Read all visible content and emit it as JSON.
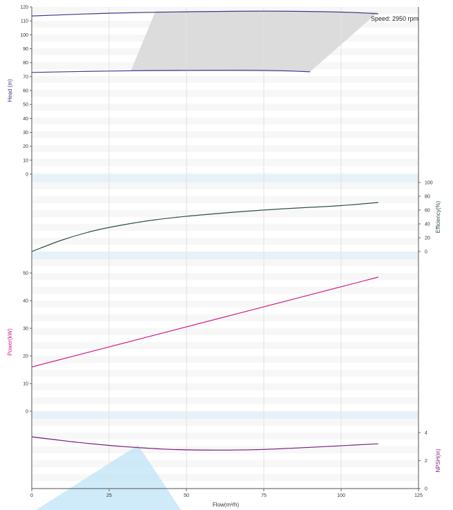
{
  "chart_data": [
    {
      "type": "line",
      "name": "head",
      "ylabel": "Head (m)",
      "ylim": [
        0,
        120
      ],
      "yticks": [
        0,
        10,
        20,
        30,
        40,
        50,
        60,
        70,
        80,
        90,
        100,
        110,
        120
      ],
      "series": [
        {
          "name": "",
          "color": "#3d3a8c",
          "x": [
            0,
            25,
            50,
            75,
            100,
            112
          ],
          "y": [
            113.5,
            115.5,
            116.5,
            117,
            116.3,
            115
          ]
        },
        {
          "name": "",
          "color": "#3d3a8c",
          "x": [
            0,
            25,
            50,
            75,
            90
          ],
          "y": [
            73,
            74,
            74.5,
            74.5,
            73.5
          ]
        }
      ],
      "operating_region": {
        "fill": "#dcdcdc",
        "polygon": [
          [
            40,
            117
          ],
          [
            112,
            116.5
          ],
          [
            90,
            73.5
          ],
          [
            32,
            74
          ]
        ]
      },
      "annotation": "Speed: 2950 rpm"
    },
    {
      "type": "line",
      "name": "efficiency",
      "ylabel": "Efficiency(%)",
      "ylim": [
        0,
        100
      ],
      "yticks": [
        0,
        20,
        40,
        60,
        80,
        100
      ],
      "series": [
        {
          "name": "",
          "color": "#2f4f3f",
          "x": [
            0,
            10,
            20,
            30,
            40,
            50,
            60,
            70,
            80,
            90,
            100,
            112
          ],
          "y": [
            0,
            17,
            30,
            39,
            46,
            51,
            55,
            58.5,
            61.5,
            64,
            66.5,
            71
          ]
        }
      ]
    },
    {
      "type": "line",
      "name": "power",
      "ylabel": "Power(kW)",
      "ylim": [
        0,
        50
      ],
      "yticks": [
        0,
        10,
        20,
        30,
        40,
        50
      ],
      "series": [
        {
          "name": "",
          "color": "#d0208a",
          "x": [
            0,
            112
          ],
          "y": [
            16,
            48.5
          ]
        }
      ]
    },
    {
      "type": "line",
      "name": "npsh",
      "ylabel": "NPSH(m)",
      "ylim": [
        0,
        4
      ],
      "yticks": [
        0,
        2,
        4
      ],
      "series": [
        {
          "name": "",
          "color": "#7a1a7a",
          "x": [
            0,
            15,
            30,
            45,
            60,
            75,
            90,
            112
          ],
          "y": [
            3.7,
            3.3,
            3.0,
            2.8,
            2.75,
            2.8,
            2.95,
            3.2
          ]
        }
      ]
    }
  ],
  "x_axis": {
    "label": "Flow(m³/h)",
    "xlim": [
      0,
      125
    ],
    "ticks": [
      0,
      25,
      50,
      75,
      100,
      125
    ]
  },
  "colors": {
    "head": "#3d3a8c",
    "efficiency": "#2f4f3f",
    "power": "#d0208a",
    "npsh": "#7a1a7a",
    "separator_band": "#e6f2f8",
    "alt_band": "#f7f7f7",
    "grid": "#e2e2e2",
    "watermark": "#bfe3f5"
  }
}
